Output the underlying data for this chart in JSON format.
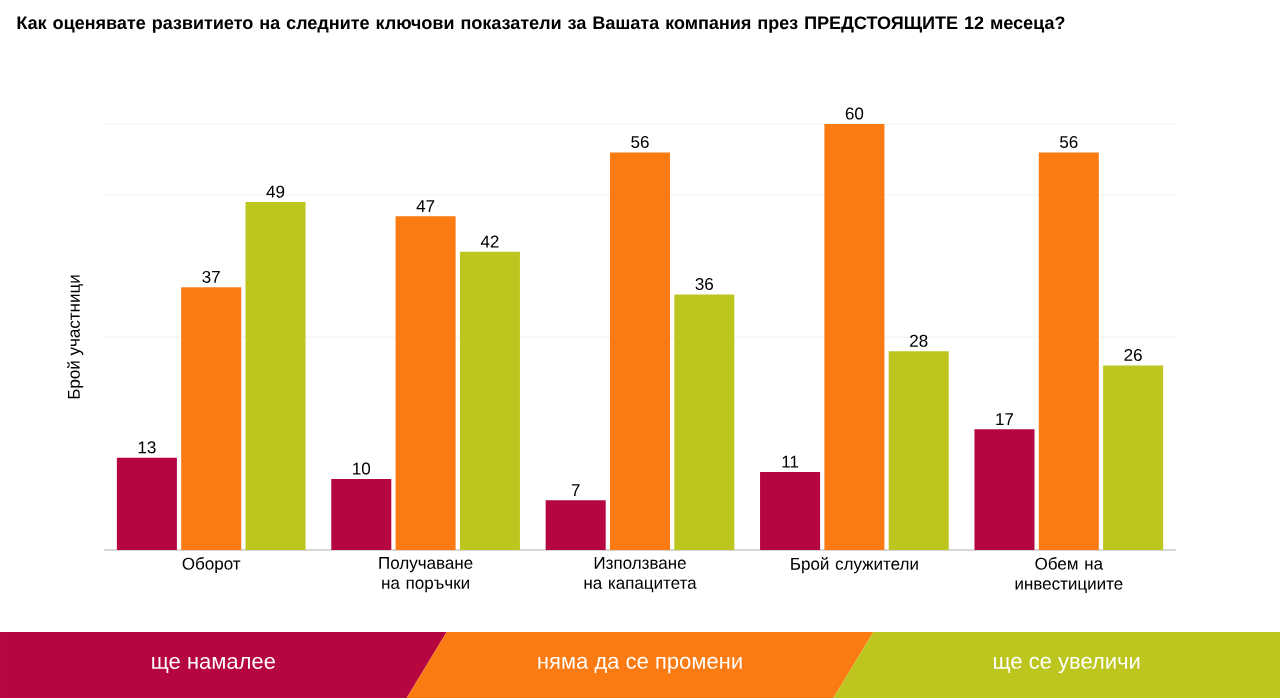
{
  "chart_data": {
    "type": "bar",
    "title": "Как оценявате развитието на следните ключови показатели за Вашата компания през ПРЕДСТОЯЩИТЕ 12 месеца?",
    "ylabel": "Брой участници",
    "categories": [
      "Оборот",
      "Получаване на поръчки",
      "Използване на капацитета",
      "Брой служители",
      "Обем на инвестициите"
    ],
    "series": [
      {
        "name": "ще намалее",
        "color": "#b5063f",
        "values": [
          13,
          10,
          7,
          11,
          17
        ]
      },
      {
        "name": "няма да се промени",
        "color": "#fb7a12",
        "values": [
          37,
          47,
          56,
          60,
          56
        ]
      },
      {
        "name": "ще се увеличи",
        "color": "#bcc61f",
        "values": [
          49,
          42,
          36,
          28,
          26
        ]
      }
    ],
    "ylim": [
      0,
      60
    ],
    "yticks": [
      {
        "value": 0,
        "label": null
      },
      {
        "value": 30,
        "label": null
      },
      {
        "value": 50,
        "label": null
      },
      {
        "value": 60,
        "label": null
      }
    ],
    "tick_labels": "x",
    "grid": "y",
    "data_labels": true,
    "legend": "bottom"
  }
}
